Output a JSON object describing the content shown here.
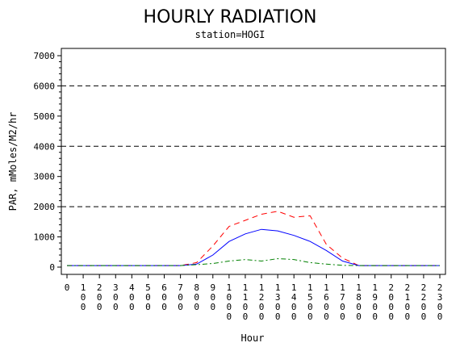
{
  "chart_data": {
    "type": "line",
    "title": "HOURLY RADIATION",
    "subtitle": "station=HOGI",
    "xlabel": "Hour",
    "ylabel": "PAR, mMoles/M2/hr",
    "x": [
      0,
      100,
      200,
      300,
      400,
      500,
      600,
      700,
      800,
      900,
      1000,
      1100,
      1200,
      1300,
      1400,
      1500,
      1600,
      1700,
      1800,
      1900,
      2000,
      2100,
      2200,
      2300
    ],
    "x_tick_labels": [
      "0",
      "100",
      "200",
      "300",
      "400",
      "500",
      "600",
      "700",
      "800",
      "900",
      "1000",
      "1100",
      "1200",
      "1300",
      "1400",
      "1500",
      "1600",
      "1700",
      "1800",
      "1900",
      "2000",
      "2100",
      "2200",
      "2300"
    ],
    "y_ticks": [
      0,
      1000,
      2000,
      3000,
      4000,
      5000,
      6000,
      7000
    ],
    "y_tick_labels": [
      "0",
      "1000",
      "2000",
      "3000",
      "4000",
      "5000",
      "6000",
      "7000"
    ],
    "xlim": [
      0,
      2300
    ],
    "ylim": [
      0,
      7000
    ],
    "reference_lines": [
      2000,
      4000,
      6000
    ],
    "series": [
      {
        "color": "#ff0000",
        "dash": "dashed",
        "values": [
          50,
          50,
          50,
          50,
          50,
          50,
          50,
          50,
          150,
          700,
          1350,
          1550,
          1750,
          1850,
          1650,
          1700,
          750,
          300,
          50,
          50,
          50,
          50,
          50,
          50
        ]
      },
      {
        "color": "#0000ff",
        "dash": "solid",
        "values": [
          50,
          50,
          50,
          50,
          50,
          50,
          50,
          50,
          100,
          400,
          850,
          1100,
          1250,
          1200,
          1050,
          850,
          550,
          200,
          50,
          50,
          50,
          50,
          50,
          50
        ]
      },
      {
        "color": "#008000",
        "dash": "dashdot",
        "values": [
          50,
          50,
          50,
          50,
          50,
          50,
          50,
          50,
          80,
          120,
          200,
          250,
          200,
          280,
          250,
          150,
          100,
          60,
          50,
          50,
          50,
          50,
          50,
          50
        ]
      }
    ]
  }
}
